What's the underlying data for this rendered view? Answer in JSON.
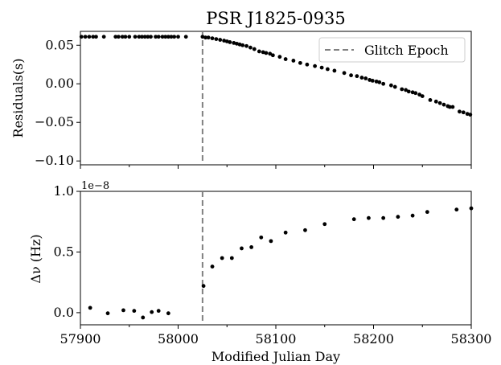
{
  "figure": {
    "title": "PSR J1825-0935",
    "shared_xlabel": "Modified Julian Day"
  },
  "chart_data": [
    {
      "type": "scatter",
      "panel": "top",
      "title": "PSR J1825-0935",
      "xlabel": "",
      "ylabel": "Residuals(s)",
      "xlim": [
        57900,
        58300
      ],
      "ylim": [
        -0.105,
        0.068
      ],
      "yticks": [
        0.05,
        0.0,
        -0.05,
        -0.1
      ],
      "ytick_labels": [
        "0.05",
        "0.00",
        "−0.05",
        "−0.10"
      ],
      "grid": false,
      "legend": {
        "placement": "top-right",
        "entries": [
          {
            "label": "Glitch Epoch",
            "style": "dashed",
            "color": "#808080"
          }
        ]
      },
      "vline": {
        "x": 58025,
        "color": "#808080",
        "style": "dashed",
        "label": "Glitch Epoch"
      },
      "series": [
        {
          "color": "#000000",
          "points": [
            [
              57901,
              0.061
            ],
            [
              57905,
              0.061
            ],
            [
              57909,
              0.061
            ],
            [
              57913,
              0.061
            ],
            [
              57916,
              0.061
            ],
            [
              57924,
              0.061
            ],
            [
              57936,
              0.061
            ],
            [
              57939,
              0.061
            ],
            [
              57943,
              0.061
            ],
            [
              57946,
              0.061
            ],
            [
              57950,
              0.061
            ],
            [
              57956,
              0.061
            ],
            [
              57960,
              0.061
            ],
            [
              57963,
              0.061
            ],
            [
              57966,
              0.061
            ],
            [
              57969,
              0.061
            ],
            [
              57972,
              0.061
            ],
            [
              57977,
              0.061
            ],
            [
              57980,
              0.061
            ],
            [
              57984,
              0.061
            ],
            [
              57987,
              0.061
            ],
            [
              57990,
              0.061
            ],
            [
              57993,
              0.061
            ],
            [
              57996,
              0.061
            ],
            [
              58000,
              0.061
            ],
            [
              58008,
              0.061
            ],
            [
              58025,
              0.061
            ],
            [
              58028,
              0.06
            ],
            [
              58031,
              0.06
            ],
            [
              58035,
              0.059
            ],
            [
              58039,
              0.058
            ],
            [
              58043,
              0.057
            ],
            [
              58047,
              0.056
            ],
            [
              58050,
              0.055
            ],
            [
              58053,
              0.054
            ],
            [
              58057,
              0.053
            ],
            [
              58060,
              0.052
            ],
            [
              58063,
              0.051
            ],
            [
              58066,
              0.05
            ],
            [
              58070,
              0.049
            ],
            [
              58074,
              0.047
            ],
            [
              58078,
              0.045
            ],
            [
              58083,
              0.042
            ],
            [
              58087,
              0.041
            ],
            [
              58090,
              0.04
            ],
            [
              58094,
              0.039
            ],
            [
              58097,
              0.037
            ],
            [
              58104,
              0.035
            ],
            [
              58110,
              0.032
            ],
            [
              58118,
              0.03
            ],
            [
              58125,
              0.027
            ],
            [
              58132,
              0.025
            ],
            [
              58140,
              0.023
            ],
            [
              58147,
              0.021
            ],
            [
              58153,
              0.019
            ],
            [
              58160,
              0.017
            ],
            [
              58170,
              0.014
            ],
            [
              58177,
              0.011
            ],
            [
              58183,
              0.01
            ],
            [
              58188,
              0.008
            ],
            [
              58192,
              0.007
            ],
            [
              58196,
              0.005
            ],
            [
              58199,
              0.004
            ],
            [
              58203,
              0.003
            ],
            [
              58206,
              0.002
            ],
            [
              58210,
              0.0
            ],
            [
              58218,
              -0.002
            ],
            [
              58222,
              -0.004
            ],
            [
              58229,
              -0.007
            ],
            [
              58233,
              -0.008
            ],
            [
              58236,
              -0.01
            ],
            [
              58240,
              -0.011
            ],
            [
              58243,
              -0.012
            ],
            [
              58247,
              -0.014
            ],
            [
              58250,
              -0.016
            ],
            [
              58258,
              -0.021
            ],
            [
              58264,
              -0.023
            ],
            [
              58268,
              -0.025
            ],
            [
              58272,
              -0.027
            ],
            [
              58276,
              -0.029
            ],
            [
              58278,
              -0.03
            ],
            [
              58281,
              -0.03
            ],
            [
              58288,
              -0.036
            ],
            [
              58292,
              -0.037
            ],
            [
              58296,
              -0.039
            ],
            [
              58299,
              -0.04
            ]
          ]
        }
      ]
    },
    {
      "type": "scatter",
      "panel": "bottom",
      "xlabel": "Modified Julian Day",
      "ylabel": "Δν  (Hz)",
      "offset_label": "1e−8",
      "xlim": [
        57900,
        58300
      ],
      "ylim": [
        -0.1,
        1.0
      ],
      "xticks": [
        57900,
        58000,
        58100,
        58200,
        58300
      ],
      "xtick_labels": [
        "57900",
        "58000",
        "58100",
        "58200",
        "58300"
      ],
      "yticks": [
        0.0,
        0.5,
        1.0
      ],
      "ytick_labels": [
        "0.0",
        "0.5",
        "1.0"
      ],
      "grid": false,
      "vline": {
        "x": 58025,
        "color": "#808080",
        "style": "dashed"
      },
      "series": [
        {
          "color": "#000000",
          "points": [
            [
              57910,
              0.04
            ],
            [
              57928,
              -0.005
            ],
            [
              57944,
              0.02
            ],
            [
              57955,
              0.015
            ],
            [
              57964,
              -0.04
            ],
            [
              57973,
              0.005
            ],
            [
              57980,
              0.015
            ],
            [
              57990,
              -0.005
            ],
            [
              58026,
              0.22
            ],
            [
              58035,
              0.38
            ],
            [
              58045,
              0.45
            ],
            [
              58055,
              0.45
            ],
            [
              58065,
              0.53
            ],
            [
              58075,
              0.54
            ],
            [
              58085,
              0.62
            ],
            [
              58095,
              0.59
            ],
            [
              58110,
              0.66
            ],
            [
              58130,
              0.68
            ],
            [
              58150,
              0.73
            ],
            [
              58180,
              0.77
            ],
            [
              58195,
              0.78
            ],
            [
              58210,
              0.78
            ],
            [
              58225,
              0.79
            ],
            [
              58240,
              0.8
            ],
            [
              58255,
              0.83
            ],
            [
              58285,
              0.85
            ],
            [
              58300,
              0.86
            ]
          ]
        }
      ]
    }
  ]
}
